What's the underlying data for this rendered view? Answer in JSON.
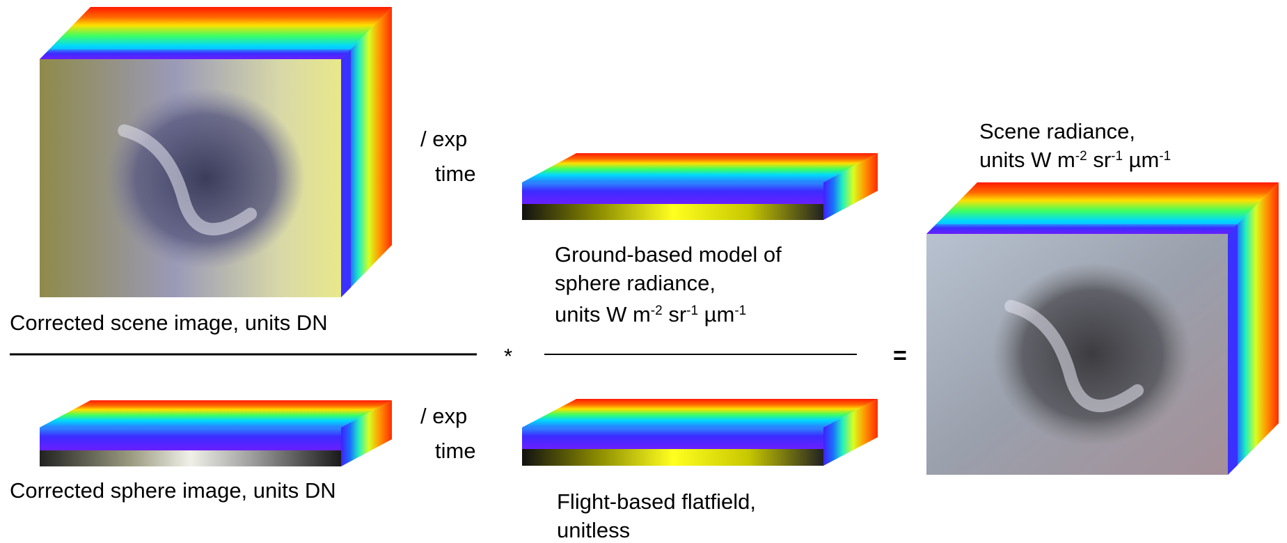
{
  "scene": {
    "label": "Corrected scene image, units DN",
    "operator": [
      "/ exp",
      "time"
    ]
  },
  "sphere": {
    "label": "Corrected sphere image, units DN",
    "operator": [
      "/ exp",
      "time"
    ]
  },
  "multiply": "*",
  "equals": "=",
  "sphere_model": {
    "label": [
      "Ground-based model of",
      "sphere radiance,"
    ],
    "units": [
      {
        "text": "units W m"
      },
      {
        "sup": "-2"
      },
      {
        "text": " sr"
      },
      {
        "sup": "-1"
      },
      {
        "text": " µm"
      },
      {
        "sup": "-1"
      }
    ]
  },
  "flatfield": {
    "label": [
      "Flight-based flatfield,",
      "unitless"
    ]
  },
  "result": {
    "label": "Scene radiance,",
    "units": [
      {
        "text": "units W m"
      },
      {
        "sup": "-2"
      },
      {
        "text": " sr"
      },
      {
        "sup": "-1"
      },
      {
        "text": " µm"
      },
      {
        "sup": "-1"
      }
    ]
  }
}
